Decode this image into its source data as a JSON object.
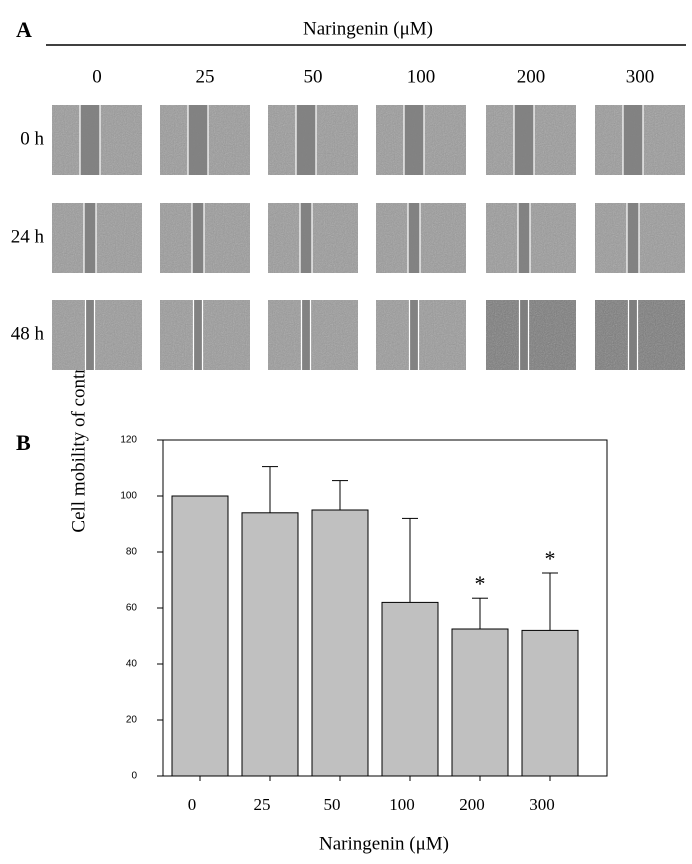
{
  "panel_a": {
    "label": "A",
    "title": "Naringenin (μM)",
    "columns": [
      "0",
      "25",
      "50",
      "100",
      "200",
      "300"
    ],
    "rows": [
      "0 h",
      "24 h",
      "48 h"
    ]
  },
  "chart_data": {
    "type": "bar",
    "panel_label": "B",
    "categories": [
      "0",
      "25",
      "50",
      "100",
      "200",
      "300"
    ],
    "values": [
      100,
      94,
      95,
      62,
      52.5,
      52
    ],
    "errors": [
      0,
      16.5,
      10.5,
      30,
      11,
      20.5
    ],
    "annotations": [
      null,
      null,
      null,
      null,
      "*",
      "*"
    ],
    "color": "#c0c0c0",
    "ylim": [
      0,
      120
    ],
    "yticks": [
      0,
      20,
      40,
      60,
      80,
      100,
      120
    ],
    "xlabel": "Naringenin (μM)",
    "ylabel": "Cell mobility of control (%)"
  }
}
